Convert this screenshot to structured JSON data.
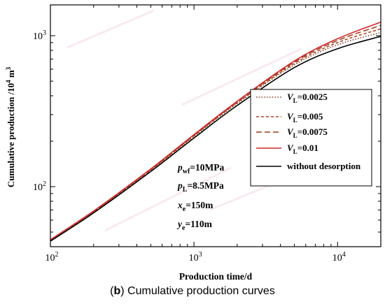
{
  "chart_data": {
    "type": "line",
    "title": "",
    "xlabel": "Production time/d",
    "ylabel": {
      "prefix": "Cumulative production /10",
      "sup1": "4",
      "mid": " m",
      "sup2": "3"
    },
    "xscale": "log",
    "yscale": "log",
    "xlim": [
      100,
      20000
    ],
    "ylim": [
      40,
      1600
    ],
    "xticks": [
      {
        "value": 100,
        "base": "10",
        "exp": "2"
      },
      {
        "value": 1000,
        "base": "10",
        "exp": "3"
      },
      {
        "value": 10000,
        "base": "10",
        "exp": "4"
      }
    ],
    "yticks": [
      {
        "value": 100,
        "base": "10",
        "exp": "2"
      },
      {
        "value": 1000,
        "base": "10",
        "exp": "3"
      }
    ],
    "legend_position": "right",
    "grid": false,
    "series": [
      {
        "label_base": "V",
        "label_sub": "L",
        "label_rest": "=0.0025",
        "color": "#7a2f18",
        "dash": "dotted",
        "x": [
          100,
          200,
          500,
          1000,
          2000,
          5000,
          10000,
          20000
        ],
        "y": [
          44,
          68,
          128,
          215,
          355,
          640,
          870,
          1050
        ]
      },
      {
        "label_base": "V",
        "label_sub": "L",
        "label_rest": "=0.005",
        "color": "#b3421f",
        "dash": "short-dash",
        "x": [
          100,
          200,
          500,
          1000,
          2000,
          5000,
          10000,
          20000
        ],
        "y": [
          44,
          68,
          129,
          217,
          360,
          655,
          900,
          1110
        ]
      },
      {
        "label_base": "V",
        "label_sub": "L",
        "label_rest": "=0.0075",
        "color": "#a23d1e",
        "dash": "long-dash",
        "x": [
          100,
          200,
          500,
          1000,
          2000,
          5000,
          10000,
          20000
        ],
        "y": [
          44.5,
          68.5,
          130,
          219,
          364,
          668,
          930,
          1170
        ]
      },
      {
        "label_base": "V",
        "label_sub": "L",
        "label_rest": "=0.01",
        "color": "#d0282a",
        "dash": "solid",
        "x": [
          100,
          200,
          500,
          1000,
          2000,
          5000,
          10000,
          20000
        ],
        "y": [
          44.5,
          69,
          131,
          221,
          368,
          680,
          955,
          1230
        ]
      },
      {
        "label_text": "without desorption",
        "color": "#000000",
        "dash": "solid",
        "x": [
          100,
          200,
          500,
          1000,
          2000,
          5000,
          10000,
          20000
        ],
        "y": [
          43.5,
          67,
          126,
          210,
          345,
          615,
          820,
          990
        ]
      }
    ],
    "annotations": [
      {
        "base": "p",
        "sub": "wf",
        "rest": "=10MPa"
      },
      {
        "base": "p",
        "sub": "L",
        "rest": "=8.5MPa"
      },
      {
        "base": "x",
        "sub": "e",
        "rest": "=150m"
      },
      {
        "base": "y",
        "sub": "e",
        "rest": "=110m"
      }
    ]
  },
  "caption": {
    "letter": "b",
    "text": " Cumulative production curves"
  }
}
